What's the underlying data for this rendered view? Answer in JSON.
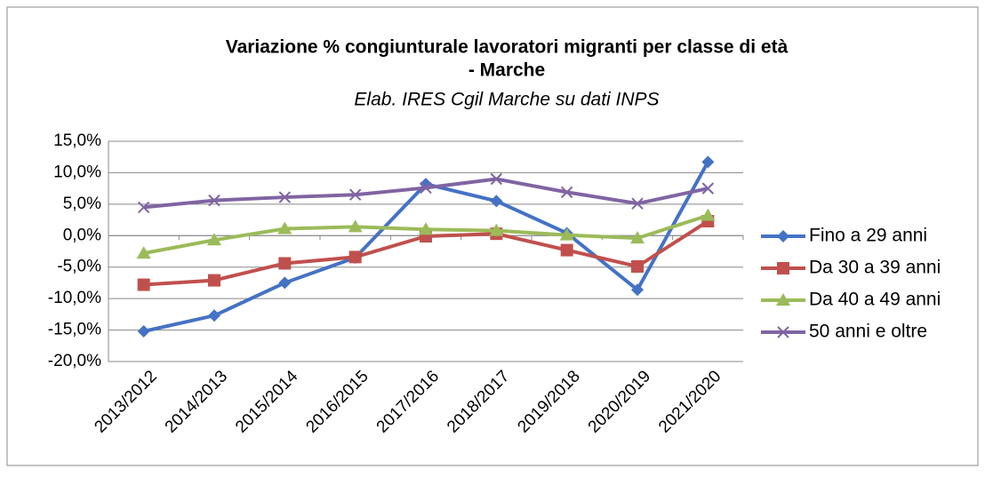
{
  "chart_data": {
    "type": "line",
    "title": [
      "Variazione % congiunturale lavoratori migranti per classe di età",
      "- Marche"
    ],
    "subtitle": "Elab. IRES Cgil Marche su dati INPS",
    "categories": [
      "2013/2012",
      "2014/2013",
      "2015/2014",
      "2016/2015",
      "2017/2016",
      "2018/2017",
      "2019/2018",
      "2020/2019",
      "2021/2020"
    ],
    "series": [
      {
        "name": "Fino a 29 anni",
        "color": "#4472c4",
        "marker": "diamond",
        "values": [
          -15.2,
          -12.7,
          -7.5,
          -3.5,
          8.2,
          5.5,
          0.4,
          -8.6,
          11.7
        ]
      },
      {
        "name": "Da 30 a 39 anni",
        "color": "#c0504d",
        "marker": "square",
        "values": [
          -7.8,
          -7.1,
          -4.4,
          -3.4,
          -0.1,
          0.3,
          -2.3,
          -4.9,
          2.3
        ]
      },
      {
        "name": "Da 40 a 49 anni",
        "color": "#9bbb59",
        "marker": "triangle",
        "values": [
          -2.8,
          -0.7,
          1.1,
          1.4,
          1.0,
          0.8,
          0.1,
          -0.4,
          3.2
        ]
      },
      {
        "name": "50 anni e oltre",
        "color": "#8064a2",
        "marker": "x",
        "values": [
          4.5,
          5.6,
          6.1,
          6.5,
          7.6,
          9.0,
          6.9,
          5.1,
          7.5
        ]
      }
    ],
    "ylim": [
      -20,
      15
    ],
    "yticks": [
      {
        "value": -20,
        "label": "-20,0%"
      },
      {
        "value": -15,
        "label": "-15,0%"
      },
      {
        "value": -10,
        "label": "-10,0%"
      },
      {
        "value": -5,
        "label": "-5,0%"
      },
      {
        "value": 0,
        "label": "0,0%"
      },
      {
        "value": 5,
        "label": "5,0%"
      },
      {
        "value": 10,
        "label": "10,0%"
      },
      {
        "value": 15,
        "label": "15,0%"
      }
    ],
    "grid": true,
    "legend": "right"
  }
}
